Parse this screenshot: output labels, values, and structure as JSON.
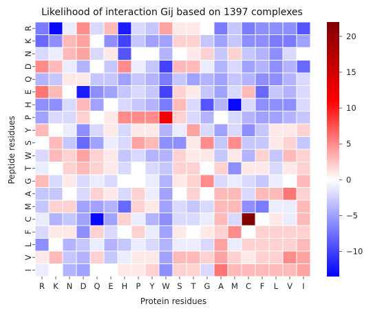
{
  "chart_data": {
    "type": "heatmap",
    "title": "Likelihood of interaction Gij based on 1397 complexes",
    "xlabel": "Protein residues",
    "ylabel": "Peptide residues",
    "x_categories": [
      "R",
      "K",
      "N",
      "D",
      "Q",
      "E",
      "H",
      "P",
      "Y",
      "W",
      "S",
      "T",
      "G",
      "A",
      "M",
      "C",
      "F",
      "L",
      "V",
      "I"
    ],
    "y_categories": [
      "R",
      "K",
      "N",
      "D",
      "Q",
      "E",
      "H",
      "P",
      "Y",
      "S",
      "W",
      "T",
      "G",
      "A",
      "M",
      "C",
      "F",
      "L",
      "V",
      "I"
    ],
    "colorbar": {
      "min": -13.5,
      "max": 22,
      "ticks": [
        20,
        15,
        10,
        5,
        0,
        -5,
        -10
      ],
      "colormap": "bwr"
    },
    "grid": true,
    "values": [
      [
        -7,
        -13,
        -1,
        5,
        -2,
        3,
        -12,
        -2,
        -3,
        4,
        1,
        1,
        0,
        -7,
        -3,
        -7,
        -6,
        -6,
        -6,
        -9
      ],
      [
        -8,
        -6,
        3,
        4,
        0,
        -6,
        -10,
        -3,
        -5,
        -5,
        2,
        2,
        -3,
        -5,
        -3,
        -6,
        -6,
        -7,
        -7,
        -5
      ],
      [
        -2,
        -1,
        3,
        4,
        -2,
        1,
        -9,
        0,
        0,
        -4,
        0,
        1,
        2,
        -3,
        2,
        -3,
        -4,
        -6,
        -2,
        0
      ],
      [
        5,
        3,
        -1,
        -4,
        0,
        -3,
        5,
        -1,
        -3,
        -10,
        3,
        3,
        -1,
        -4,
        -2,
        -5,
        -4,
        -6,
        -4,
        -8
      ],
      [
        -4,
        -3,
        1,
        1,
        -3,
        -3,
        -5,
        -3,
        -4,
        -7,
        -3,
        -5,
        -4,
        -5,
        -3,
        -4,
        -6,
        -6,
        -4,
        -2
      ],
      [
        6,
        3,
        0,
        -12,
        -6,
        -5,
        -3,
        -2,
        -3,
        -10,
        2,
        1,
        -3,
        -5,
        -2,
        3,
        -8,
        -3,
        -4,
        -2
      ],
      [
        -6,
        -6,
        -2,
        3,
        -5,
        0,
        -2,
        -3,
        -4,
        -7,
        3,
        -2,
        -9,
        -4,
        -13,
        -2,
        -6,
        -6,
        -6,
        -2
      ],
      [
        -5,
        -2,
        -2,
        2,
        0,
        1,
        5,
        5,
        5,
        12,
        2,
        -2,
        -4,
        0,
        -2,
        -4,
        -5,
        -5,
        -4,
        -3
      ],
      [
        3,
        0,
        -1,
        -6,
        -2,
        1,
        -2,
        1,
        1,
        -4,
        -1,
        4,
        -2,
        -5,
        -2,
        -6,
        -3,
        1,
        1,
        2
      ],
      [
        0,
        3,
        -3,
        -8,
        -5,
        -1,
        -2,
        4,
        3,
        -6,
        -6,
        1,
        5,
        -3,
        5,
        -3,
        -3,
        1,
        2,
        -3
      ],
      [
        -2,
        3,
        2,
        4,
        2,
        1,
        -3,
        -2,
        -4,
        -4,
        2,
        1,
        1,
        -3,
        1,
        -4,
        2,
        -3,
        3,
        2
      ],
      [
        -1,
        0,
        2,
        3,
        2,
        1,
        -2,
        0,
        -2,
        -3,
        2,
        2,
        0,
        2,
        -6,
        1,
        1,
        -2,
        1,
        2
      ],
      [
        3,
        -2,
        1,
        -2,
        -1,
        -2,
        0,
        0,
        -1,
        -4,
        1,
        2,
        5,
        -2,
        -1,
        -2,
        -3,
        -1,
        0,
        3
      ],
      [
        -3,
        -3,
        0,
        -2,
        2,
        1,
        -2,
        2,
        -1,
        -5,
        0,
        2,
        0,
        3,
        3,
        -2,
        3,
        3,
        6,
        2
      ],
      [
        -3,
        2,
        2,
        -5,
        -5,
        -4,
        -8,
        2,
        1,
        -5,
        -2,
        -3,
        -2,
        3,
        3,
        -6,
        -7,
        -1,
        -1,
        3
      ],
      [
        -1,
        -4,
        -3,
        -5,
        -13,
        -5,
        2,
        -1,
        -4,
        -6,
        -2,
        -2,
        -1,
        3,
        -2,
        22,
        0,
        1,
        -1,
        3
      ],
      [
        -2,
        1,
        1,
        -6,
        2,
        -2,
        0,
        2,
        -1,
        -5,
        1,
        0,
        1,
        2,
        5,
        0,
        2,
        2,
        2,
        2
      ],
      [
        -6,
        0,
        -4,
        -3,
        -1,
        -4,
        -3,
        -1,
        -2,
        -4,
        -1,
        -1,
        -2,
        4,
        -1,
        2,
        2,
        2,
        2,
        3
      ],
      [
        1,
        3,
        -3,
        -4,
        2,
        -3,
        -1,
        1,
        1,
        -5,
        3,
        3,
        2,
        4,
        2,
        1,
        2,
        2,
        5,
        4
      ],
      [
        -1,
        0,
        -4,
        -5,
        0,
        0,
        1,
        1,
        2,
        -6,
        2,
        2,
        -2,
        6,
        3,
        3,
        3,
        3,
        3,
        4
      ]
    ]
  }
}
